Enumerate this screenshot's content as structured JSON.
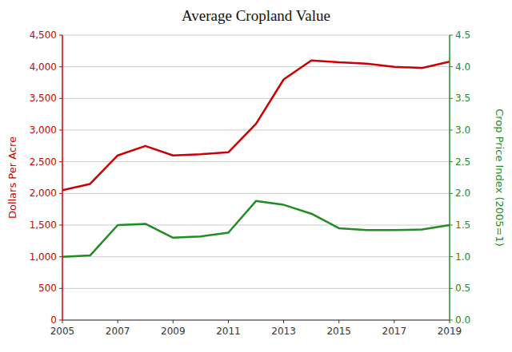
{
  "chart_data": {
    "type": "line",
    "title": "Average Cropland Value",
    "x": [
      2005,
      2006,
      2007,
      2008,
      2009,
      2010,
      2011,
      2012,
      2013,
      2014,
      2015,
      2016,
      2017,
      2018,
      2019
    ],
    "xlim": [
      2005,
      2019
    ],
    "xticks": [
      2005,
      2007,
      2009,
      2011,
      2013,
      2015,
      2017,
      2019
    ],
    "ylabel": "Dollars Per Acre",
    "y2label": "Crop Price Index (2005=1)",
    "ylim": [
      0,
      4500
    ],
    "yticks": [
      0,
      500,
      {
        "value": 1000,
        "label": "1,000"
      },
      {
        "value": 1500,
        "label": "1,500"
      },
      {
        "value": 2000,
        "label": "2,000"
      },
      {
        "value": 2500,
        "label": "2,500"
      },
      {
        "value": 3000,
        "label": "3,000"
      },
      {
        "value": 3500,
        "label": "3,500"
      },
      {
        "value": 4000,
        "label": "4,000"
      },
      {
        "value": 4500,
        "label": "4,500"
      }
    ],
    "y2lim": [
      0.0,
      4.5
    ],
    "y2ticks": [
      {
        "value": 0.0,
        "label": "0.0"
      },
      0.5,
      {
        "value": 1.0,
        "label": "1.0"
      },
      1.5,
      {
        "value": 2.0,
        "label": "2.0"
      },
      2.5,
      {
        "value": 3.0,
        "label": "3.0"
      },
      3.5,
      {
        "value": 4.0,
        "label": "4.0"
      },
      4.5
    ],
    "grid": true,
    "series": [
      {
        "color": "#cc0000",
        "values": [
          2050,
          2150,
          2600,
          2750,
          2600,
          2620,
          2650,
          3100,
          3800,
          4100,
          4070,
          4050,
          4000,
          3980,
          4080
        ]
      },
      {
        "color": "#228B22",
        "axis": "y2",
        "values": [
          1.0,
          1.02,
          1.5,
          1.52,
          1.3,
          1.32,
          1.38,
          1.88,
          1.82,
          1.68,
          1.45,
          1.42,
          1.42,
          1.43,
          1.5
        ]
      }
    ]
  }
}
